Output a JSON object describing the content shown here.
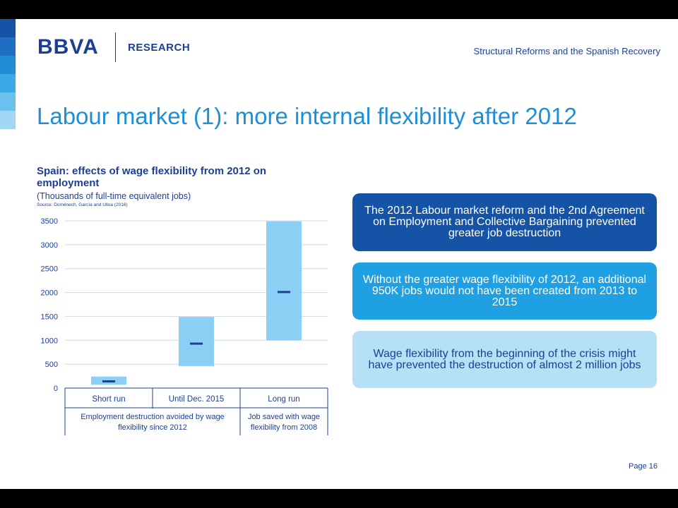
{
  "header": {
    "logo": "BBVA",
    "research": "RESEARCH",
    "right_title": "Structural Reforms and the Spanish Recovery"
  },
  "slide_title": "Labour market (1): more internal flexibility after 2012",
  "chart_data": {
    "type": "bar",
    "title": "Spain: effects of wage flexibility from 2012 on employment",
    "subtitle": "(Thousands of full-time equivalent jobs)",
    "source": "Source: Doménech, García and Ulloa (2016)",
    "categories": [
      "Short run",
      "Until Dec. 2015",
      "Long run"
    ],
    "group_labels": [
      "Employment destruction avoided by wage flexibility since 2012",
      "Job saved with wage flexibility from 2008"
    ],
    "ranges": [
      {
        "low": 70,
        "high": 240,
        "central": 140
      },
      {
        "low": 460,
        "high": 1490,
        "central": 930
      },
      {
        "low": 1000,
        "high": 3490,
        "central": 2010
      }
    ],
    "ylim": [
      0,
      3500
    ],
    "yticks": [
      0,
      500,
      1000,
      1500,
      2000,
      2500,
      3000,
      3500
    ],
    "colors": {
      "range": "#8ccff4",
      "central": "#1c3f94"
    }
  },
  "boxes": [
    "The 2012 Labour market reform and the 2nd Agreement on Employment and Collective Bargaining prevented greater job destruction",
    "Without the greater wage flexibility of 2012, an additional 950K jobs would not have been created from 2013 to 2015",
    "Wage flexibility from the beginning of the crisis might have prevented the destruction of almost 2 million jobs"
  ],
  "page_label": "Page 16",
  "stripe_colors": [
    "#1553a7",
    "#1e6fc4",
    "#1e8fd6",
    "#3aa9e6",
    "#6cc0ee",
    "#a2d7f4"
  ]
}
